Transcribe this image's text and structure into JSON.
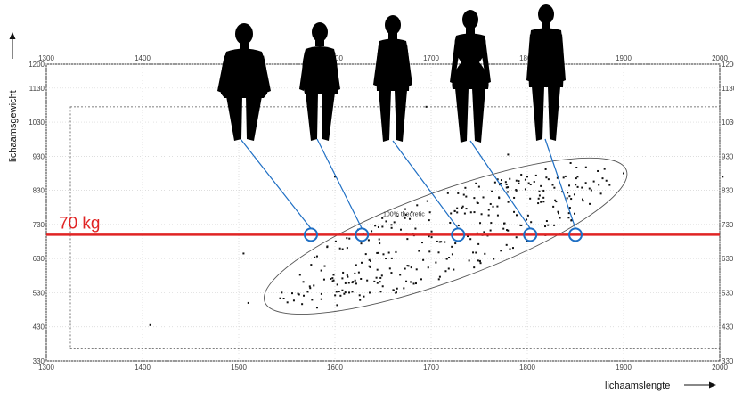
{
  "chart_data": {
    "type": "scatter",
    "xlabel": "lichaamslengte",
    "ylabel": "lichaamsgewicht",
    "xlim": [
      1300,
      2000
    ],
    "ylim": [
      330,
      1200
    ],
    "x_ticks_bottom": [
      1300,
      1400,
      1500,
      1600,
      1700,
      1800,
      1900,
      2000
    ],
    "x_ticks_top": [
      1300,
      1400,
      1500,
      1600,
      1700,
      1800,
      1900,
      2000
    ],
    "y_ticks": [
      330,
      430,
      530,
      630,
      730,
      830,
      930,
      1030,
      1130,
      1200
    ],
    "grid": true,
    "colors": {
      "points": "#111111",
      "reference_line": "#e02424",
      "markers": "#1f6fc4",
      "ellipse": "#555555",
      "dashed_box": "#555555"
    },
    "reference_line": {
      "y": 700,
      "label": "70 kg"
    },
    "ellipse_annotation": {
      "label": "100% theoretic",
      "center": [
        1715,
        696
      ],
      "semi_axis_x_data": 200,
      "semi_axis_y_data": 131,
      "tilt_deg": -20
    },
    "dashed_box": {
      "x": [
        1325,
        2000
      ],
      "y": [
        365,
        1075
      ]
    },
    "highlight_markers": [
      {
        "x": 1575,
        "y": 700,
        "silhouette": "silhouette-1"
      },
      {
        "x": 1628,
        "y": 700,
        "silhouette": "silhouette-2"
      },
      {
        "x": 1728,
        "y": 700,
        "silhouette": "silhouette-3"
      },
      {
        "x": 1803,
        "y": 700,
        "silhouette": "silhouette-4"
      },
      {
        "x": 1850,
        "y": 700,
        "silhouette": "silhouette-5"
      }
    ],
    "outliers": [
      [
        1408,
        435
      ],
      [
        1505,
        645
      ],
      [
        1510,
        500
      ],
      [
        1600,
        870
      ],
      [
        1695,
        1075
      ],
      [
        1780,
        935
      ],
      [
        1800,
        870
      ],
      [
        1845,
        910
      ],
      [
        1900,
        880
      ],
      [
        2003,
        870
      ]
    ],
    "cluster": {
      "count": 330,
      "center": [
        1715,
        696
      ],
      "semi_axis_x_data": 190,
      "semi_axis_y_data": 124,
      "tilt_deg": -20
    }
  }
}
